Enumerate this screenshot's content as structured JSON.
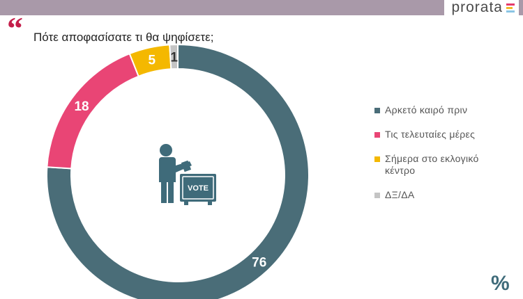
{
  "header": {
    "logo_text": "prorata",
    "logo_bar_colors": [
      "#e63a6b",
      "#f3b829",
      "#8bc5e4"
    ]
  },
  "question": {
    "quote_mark": "“",
    "title": "Πότε αποφασίσατε τι θα ψηφίσετε;"
  },
  "icon": {
    "name": "person-voting-icon",
    "ballot_label": "VOTE",
    "color": "#3f6b7a"
  },
  "chart_data": {
    "type": "pie",
    "donut": true,
    "title": "Πότε αποφασίσατε τι θα ψηφίσετε;",
    "categories": [
      "Αρκετό καιρό πριν",
      "Τις τελευταίες μέρες",
      "Σήμερα στο εκλογικό κέντρο",
      "ΔΞ/ΔΑ"
    ],
    "values": [
      76,
      18,
      5,
      1
    ],
    "data_labels": [
      "76",
      "18",
      "5",
      "1"
    ],
    "colors": [
      "#4a6d78",
      "#e94575",
      "#f4b800",
      "#c4c4c4"
    ],
    "legend_position": "right"
  },
  "footer": {
    "percent_symbol": "%"
  }
}
